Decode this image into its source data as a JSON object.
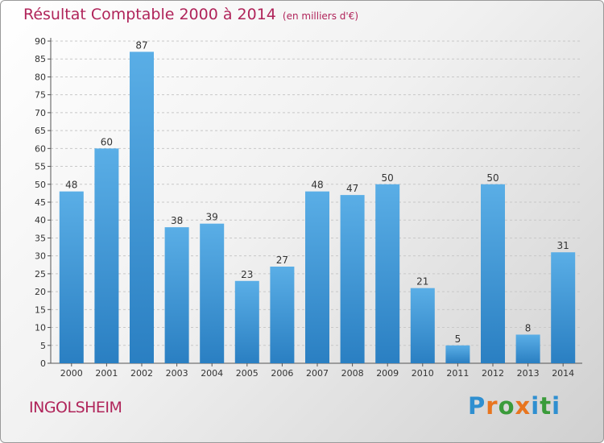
{
  "title": "Résultat Comptable 2000 à 2014",
  "subtitle": "(en milliers d'€)",
  "place": "INGOLSHEIM",
  "logo": "Proxiti",
  "colors": {
    "title": "#b0245a",
    "bar_top": "#5aaee6",
    "bar_bottom": "#2a7fc2",
    "axis": "#555555",
    "grid": "#c8c8c8"
  },
  "chart_data": {
    "type": "bar",
    "categories": [
      "2000",
      "2001",
      "2002",
      "2003",
      "2004",
      "2005",
      "2006",
      "2007",
      "2008",
      "2009",
      "2010",
      "2011",
      "2012",
      "2013",
      "2014"
    ],
    "values": [
      48,
      60,
      87,
      38,
      39,
      23,
      27,
      48,
      47,
      50,
      21,
      5,
      50,
      8,
      31
    ],
    "title": "Résultat Comptable 2000 à 2014",
    "subtitle": "(en milliers d'€)",
    "xlabel": "",
    "ylabel": "",
    "ylim": [
      0,
      90
    ],
    "yticks": [
      0,
      5,
      10,
      15,
      20,
      25,
      30,
      35,
      40,
      45,
      50,
      55,
      60,
      65,
      70,
      75,
      80,
      85,
      90
    ],
    "grid": "horizontal dashed",
    "legend": "none"
  }
}
